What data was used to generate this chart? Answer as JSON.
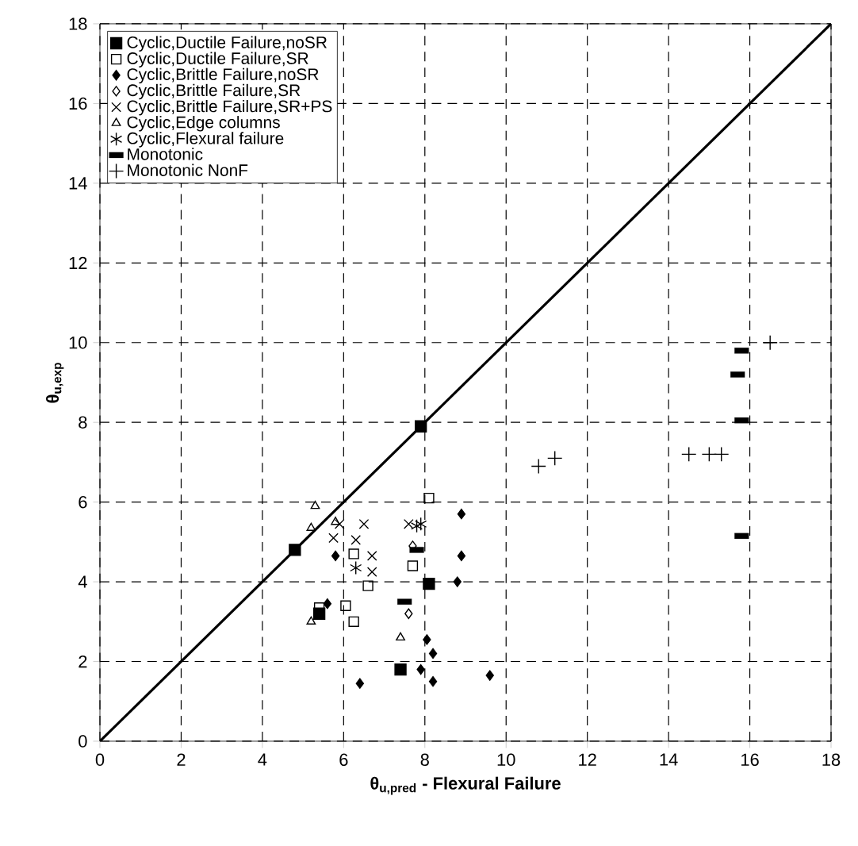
{
  "chart_data": {
    "type": "scatter",
    "xlabel": "**θ$_{u,pred}$** - Flexural Failure",
    "ylabel": "θ$_{u,exp}$",
    "xlim": [
      0,
      18
    ],
    "ylim": [
      0,
      18
    ],
    "xticks": [
      0,
      2,
      4,
      6,
      8,
      10,
      12,
      14,
      16,
      18
    ],
    "yticks": [
      0,
      2,
      4,
      6,
      8,
      10,
      12,
      14,
      16,
      18
    ],
    "grid": true,
    "legend": "top left",
    "series": [
      {
        "name": "Cyclic,Ductile Failure,noSR",
        "color": "#000000",
        "marker": "square*",
        "x": [
          4.8,
          7.9,
          5.4,
          7.4,
          8.1
        ],
        "values": [
          4.8,
          7.9,
          3.2,
          1.8,
          3.95
        ]
      },
      {
        "name": "Cyclic,Ductile Failure,SR",
        "color": "#000000",
        "marker": "square",
        "x": [
          8.1,
          5.4,
          6.05,
          6.25,
          6.6,
          6.25,
          7.7
        ],
        "values": [
          6.1,
          3.35,
          3.4,
          3.0,
          3.9,
          4.7,
          4.4
        ]
      },
      {
        "name": "Cyclic,Brittle Failure,noSR",
        "color": "#000000",
        "marker": "diamond*",
        "x": [
          5.8,
          5.6,
          6.4,
          8.9,
          8.9,
          8.8,
          8.05,
          8.2,
          7.9,
          8.2,
          9.6
        ],
        "values": [
          4.65,
          3.45,
          1.45,
          5.7,
          4.65,
          4.0,
          2.55,
          2.2,
          1.8,
          1.5,
          1.65
        ]
      },
      {
        "name": "Cyclic,Brittle Failure,SR",
        "color": "#000000",
        "marker": "diamond",
        "x": [
          7.6,
          7.7
        ],
        "values": [
          3.2,
          4.9
        ]
      },
      {
        "name": "Cyclic,Brittle Failure,SR+PS",
        "color": "#000000",
        "marker": "x",
        "x": [
          5.9,
          6.5,
          5.75,
          6.3,
          6.7,
          6.7,
          7.6
        ],
        "values": [
          5.45,
          5.45,
          5.1,
          5.05,
          4.65,
          4.25,
          5.45
        ]
      },
      {
        "name": "Cyclic,Edge columns",
        "color": "#000000",
        "marker": "triangle",
        "x": [
          5.3,
          5.2,
          5.8,
          5.2,
          7.4
        ],
        "values": [
          5.9,
          5.35,
          5.5,
          3.0,
          2.6
        ]
      },
      {
        "name": "Cyclic,Flexural failure",
        "color": "#000000",
        "marker": "cross",
        "x": [
          6.3,
          7.9,
          7.8
        ],
        "values": [
          4.35,
          5.45,
          5.4
        ]
      },
      {
        "name": "Monotonic",
        "color": "#000000",
        "marker": "square",
        "line_style": "solid",
        "x": [
          15.8,
          15.7,
          15.8,
          15.8,
          7.5,
          7.8
        ],
        "values": [
          9.8,
          9.2,
          8.05,
          5.15,
          3.5,
          4.8
        ]
      },
      {
        "name": "Monotonic NonF",
        "color": "#000000",
        "marker": "+",
        "x": [
          16.5,
          14.5,
          15.0,
          15.3,
          10.8,
          11.2
        ],
        "values": [
          10.0,
          7.2,
          7.2,
          7.2,
          6.9,
          7.1
        ]
      },
      {
        "type": "line",
        "color": "#000000",
        "marker": "none",
        "line_style": "solid",
        "x": [
          0,
          18
        ],
        "values": [
          0,
          18
        ]
      }
    ]
  }
}
